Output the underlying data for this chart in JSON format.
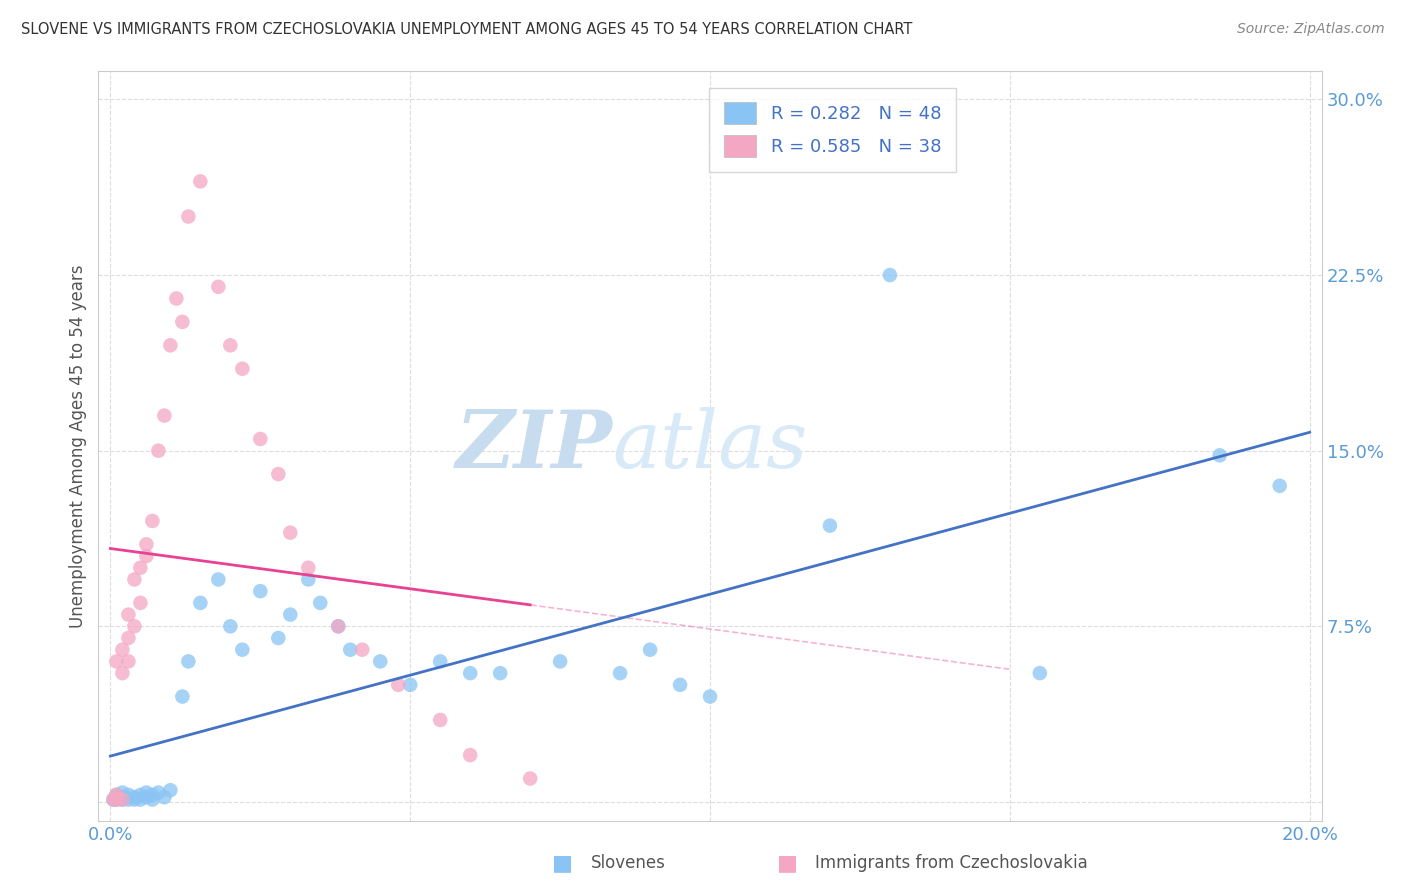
{
  "title": "SLOVENE VS IMMIGRANTS FROM CZECHOSLOVAKIA UNEMPLOYMENT AMONG AGES 45 TO 54 YEARS CORRELATION CHART",
  "source": "Source: ZipAtlas.com",
  "ylabel": "Unemployment Among Ages 45 to 54 years",
  "xlim": [
    -0.002,
    0.202
  ],
  "ylim": [
    -0.008,
    0.312
  ],
  "color_slovene": "#89C4F4",
  "color_czech": "#F4A7C3",
  "color_line_slovene": "#4472C4",
  "color_line_czech": "#E84393",
  "watermark_zip": "ZIP",
  "watermark_atlas": "atlas",
  "legend_r1": "0.282",
  "legend_n1": "48",
  "legend_r2": "0.585",
  "legend_n2": "38",
  "slovene_x": [
    0.0005,
    0.001,
    0.001,
    0.001,
    0.002,
    0.002,
    0.002,
    0.003,
    0.003,
    0.004,
    0.004,
    0.005,
    0.005,
    0.006,
    0.006,
    0.007,
    0.007,
    0.008,
    0.009,
    0.01,
    0.012,
    0.013,
    0.015,
    0.018,
    0.02,
    0.022,
    0.025,
    0.028,
    0.03,
    0.033,
    0.035,
    0.038,
    0.04,
    0.045,
    0.05,
    0.055,
    0.06,
    0.065,
    0.075,
    0.085,
    0.09,
    0.095,
    0.1,
    0.12,
    0.13,
    0.155,
    0.185,
    0.195
  ],
  "slovene_y": [
    0.001,
    0.001,
    0.002,
    0.003,
    0.001,
    0.002,
    0.004,
    0.001,
    0.003,
    0.001,
    0.002,
    0.001,
    0.003,
    0.002,
    0.004,
    0.001,
    0.003,
    0.004,
    0.002,
    0.005,
    0.045,
    0.06,
    0.085,
    0.095,
    0.075,
    0.065,
    0.09,
    0.07,
    0.08,
    0.095,
    0.085,
    0.075,
    0.065,
    0.06,
    0.05,
    0.06,
    0.055,
    0.055,
    0.06,
    0.055,
    0.065,
    0.05,
    0.045,
    0.118,
    0.225,
    0.055,
    0.148,
    0.135
  ],
  "czech_x": [
    0.0005,
    0.001,
    0.001,
    0.001,
    0.001,
    0.002,
    0.002,
    0.002,
    0.003,
    0.003,
    0.003,
    0.004,
    0.004,
    0.005,
    0.005,
    0.006,
    0.006,
    0.007,
    0.008,
    0.009,
    0.01,
    0.011,
    0.012,
    0.013,
    0.015,
    0.018,
    0.02,
    0.022,
    0.025,
    0.028,
    0.03,
    0.033,
    0.038,
    0.042,
    0.048,
    0.055,
    0.06,
    0.07
  ],
  "czech_y": [
    0.001,
    0.001,
    0.002,
    0.003,
    0.06,
    0.001,
    0.055,
    0.065,
    0.06,
    0.07,
    0.08,
    0.075,
    0.095,
    0.085,
    0.1,
    0.105,
    0.11,
    0.12,
    0.15,
    0.165,
    0.195,
    0.215,
    0.205,
    0.25,
    0.265,
    0.22,
    0.195,
    0.185,
    0.155,
    0.14,
    0.115,
    0.1,
    0.075,
    0.065,
    0.05,
    0.035,
    0.02,
    0.01
  ]
}
